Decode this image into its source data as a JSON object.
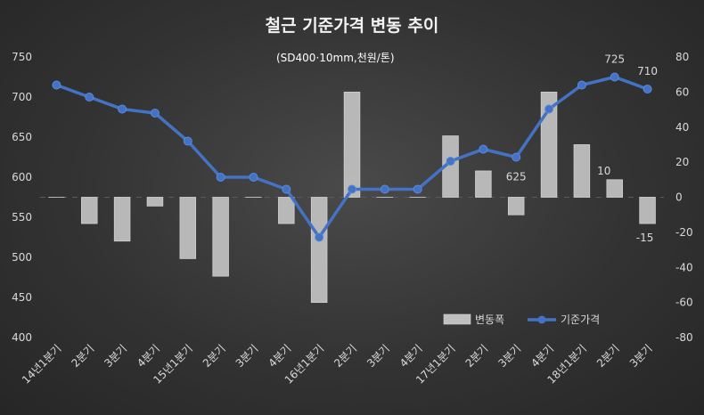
{
  "chart_data": {
    "type": "bar+line",
    "title": "철근 기준가격 변동 추이",
    "subtitle": "(SD400·10mm,천원/톤)",
    "categories": [
      "14년1분기",
      "2분기",
      "3분기",
      "4분기",
      "15년1분기",
      "2분기",
      "3분기",
      "4분기",
      "16년1분기",
      "2분기",
      "3분기",
      "4분기",
      "17년1분기",
      "2분기",
      "3분기",
      "4분기",
      "18년1분기",
      "2분기",
      "3분기"
    ],
    "series": [
      {
        "name": "변동폭",
        "kind": "bar",
        "axis": "right",
        "color": "#bfbfbf",
        "values": [
          0,
          -15,
          -25,
          -5,
          -35,
          -45,
          0,
          -15,
          -60,
          60,
          0,
          0,
          35,
          15,
          -10,
          60,
          30,
          10,
          -15
        ]
      },
      {
        "name": "기준가격",
        "kind": "line",
        "axis": "left",
        "color": "#4472c4",
        "values": [
          715,
          700,
          685,
          680,
          645,
          600,
          600,
          585,
          525,
          585,
          585,
          585,
          620,
          635,
          625,
          685,
          715,
          725,
          710
        ]
      }
    ],
    "left_axis": {
      "min": 400,
      "max": 750,
      "step": 50,
      "ticks": [
        "400",
        "450",
        "500",
        "550",
        "600",
        "650",
        "700",
        "750"
      ]
    },
    "right_axis": {
      "min": -80,
      "max": 80,
      "step": 20,
      "ticks": [
        "-80",
        "-60",
        "-40",
        "-20",
        "0",
        "20",
        "40",
        "60",
        "80"
      ]
    },
    "data_labels": [
      {
        "series": "기준가격",
        "index": 17,
        "text": "725"
      },
      {
        "series": "기준가격",
        "index": 18,
        "text": "710"
      },
      {
        "series": "기준가격",
        "index": 14,
        "text": "625"
      },
      {
        "series": "변동폭",
        "index": 17,
        "text": "10"
      },
      {
        "series": "변동폭",
        "index": 18,
        "text": "-15"
      }
    ],
    "legend": {
      "placement": "bottom-right",
      "items": [
        "변동폭",
        "기준가격"
      ]
    },
    "grid": false,
    "background": "#3a3a3a",
    "text_color": "#d9d9d9"
  }
}
